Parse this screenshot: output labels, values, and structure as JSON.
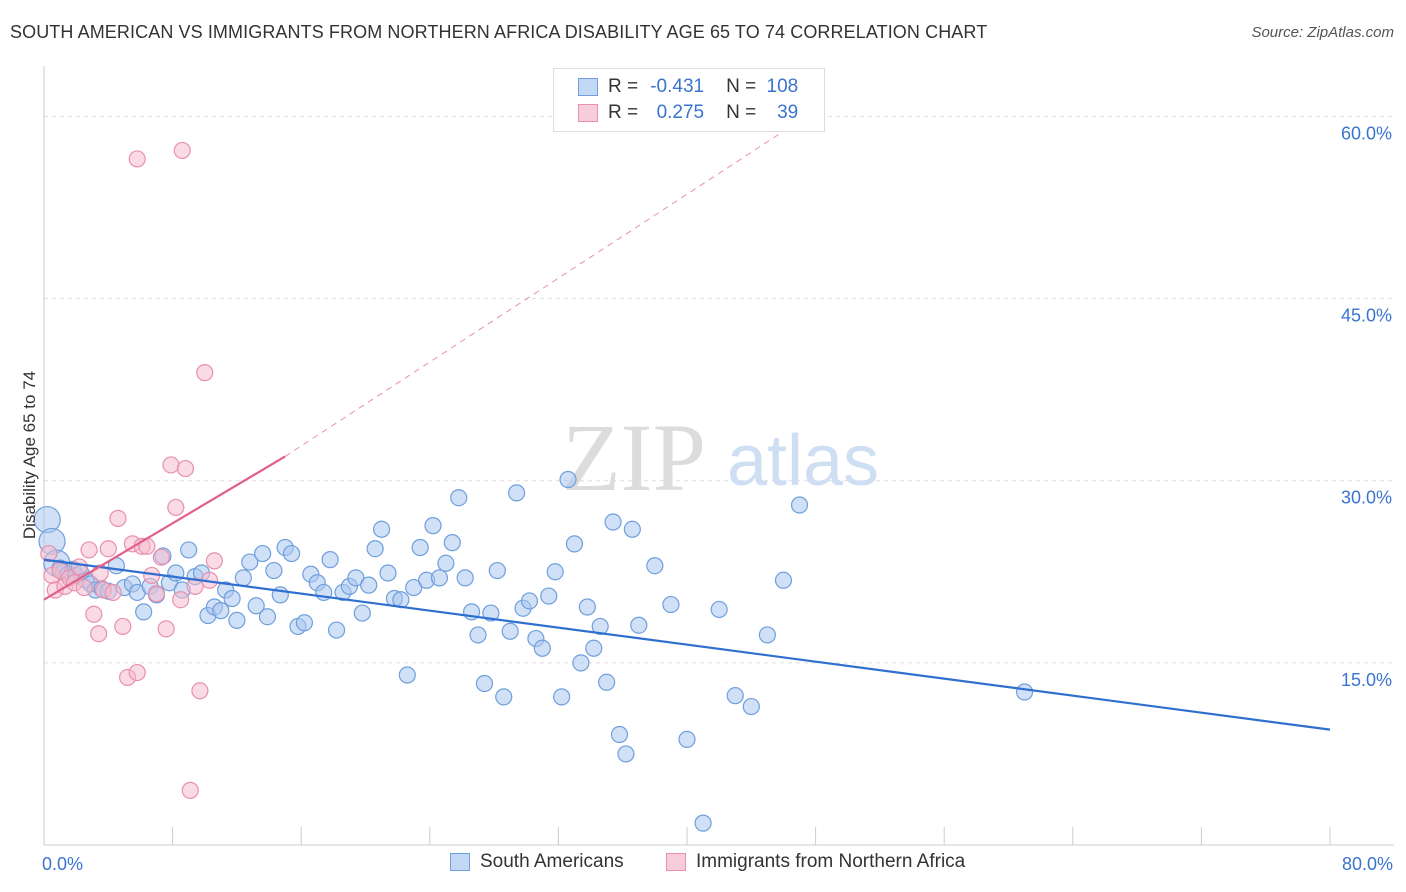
{
  "title": "SOUTH AMERICAN VS IMMIGRANTS FROM NORTHERN AFRICA DISABILITY AGE 65 TO 74 CORRELATION CHART",
  "source": "Source: ZipAtlas.com",
  "watermark": {
    "zip": "ZIP",
    "atlas": "atlas"
  },
  "legend": {
    "rows": [
      {
        "r_label": "R =",
        "r_value": "-0.431",
        "n_label": "N =",
        "n_value": "108"
      },
      {
        "r_label": "R =",
        "r_value": "0.275",
        "n_label": "N =",
        "n_value": "39"
      }
    ]
  },
  "colors": {
    "blue_fill": "#a9c6ee",
    "blue_stroke": "#6f9fdc",
    "blue_line": "#2f6fd0",
    "pink_fill": "#f5bccd",
    "pink_stroke": "#e890ad",
    "pink_line": "#e0608a",
    "axis_text": "#3a74d0",
    "grid": "#dddddd"
  },
  "chart_data": {
    "type": "scatter",
    "title": "SOUTH AMERICAN VS IMMIGRANTS FROM NORTHERN AFRICA DISABILITY AGE 65 TO 74 CORRELATION CHART",
    "xlabel": "",
    "ylabel": "Disability Age 65 to 74",
    "xlim": [
      0,
      80
    ],
    "ylim": [
      0,
      63
    ],
    "x_tick_labels": [
      {
        "value": 0,
        "label": "0.0%"
      },
      {
        "value": 80,
        "label": "80.0%"
      }
    ],
    "y_tick_labels": [
      {
        "value": 15,
        "label": "15.0%"
      },
      {
        "value": 30,
        "label": "30.0%"
      },
      {
        "value": 45,
        "label": "45.0%"
      },
      {
        "value": 60,
        "label": "60.0%"
      }
    ],
    "grid": true,
    "legend_position": "bottom",
    "series": [
      {
        "name": "South Americans",
        "r": -0.431,
        "n": 108,
        "trend": {
          "x0": 0,
          "y0": 23.5,
          "x1": 80,
          "y1": 9.5
        },
        "points": [
          [
            0.2,
            26.8
          ],
          [
            0.5,
            25.0
          ],
          [
            0.8,
            23.2
          ],
          [
            1.0,
            22.8
          ],
          [
            1.2,
            22.5
          ],
          [
            1.5,
            22.3
          ],
          [
            1.8,
            22.7
          ],
          [
            2.0,
            22.2
          ],
          [
            2.3,
            22.4
          ],
          [
            2.6,
            21.8
          ],
          [
            2.9,
            21.5
          ],
          [
            3.2,
            21.0
          ],
          [
            3.6,
            21.1
          ],
          [
            4.0,
            20.9
          ],
          [
            4.5,
            23.0
          ],
          [
            5.0,
            21.2
          ],
          [
            5.5,
            21.5
          ],
          [
            5.8,
            20.8
          ],
          [
            6.2,
            19.2
          ],
          [
            6.6,
            21.3
          ],
          [
            7.0,
            20.6
          ],
          [
            7.4,
            23.8
          ],
          [
            7.8,
            21.6
          ],
          [
            8.2,
            22.4
          ],
          [
            8.6,
            21.0
          ],
          [
            9.0,
            24.3
          ],
          [
            9.4,
            22.1
          ],
          [
            9.8,
            22.4
          ],
          [
            10.2,
            18.9
          ],
          [
            10.6,
            19.6
          ],
          [
            11.0,
            19.3
          ],
          [
            11.3,
            21.0
          ],
          [
            11.7,
            20.3
          ],
          [
            12.0,
            18.5
          ],
          [
            12.4,
            22.0
          ],
          [
            12.8,
            23.3
          ],
          [
            13.2,
            19.7
          ],
          [
            13.6,
            24.0
          ],
          [
            13.9,
            18.8
          ],
          [
            14.3,
            22.6
          ],
          [
            14.7,
            20.6
          ],
          [
            15.0,
            24.5
          ],
          [
            15.4,
            24.0
          ],
          [
            15.8,
            18.0
          ],
          [
            16.2,
            18.3
          ],
          [
            16.6,
            22.3
          ],
          [
            17.0,
            21.6
          ],
          [
            17.4,
            20.8
          ],
          [
            17.8,
            23.5
          ],
          [
            18.2,
            17.7
          ],
          [
            18.6,
            20.8
          ],
          [
            19.0,
            21.3
          ],
          [
            19.4,
            22.0
          ],
          [
            19.8,
            19.1
          ],
          [
            20.2,
            21.4
          ],
          [
            20.6,
            24.4
          ],
          [
            21.0,
            26.0
          ],
          [
            21.4,
            22.4
          ],
          [
            21.8,
            20.3
          ],
          [
            22.2,
            20.2
          ],
          [
            22.6,
            14.0
          ],
          [
            23.0,
            21.2
          ],
          [
            23.4,
            24.5
          ],
          [
            23.8,
            21.8
          ],
          [
            24.2,
            26.3
          ],
          [
            24.6,
            22.0
          ],
          [
            25.0,
            23.2
          ],
          [
            25.4,
            24.9
          ],
          [
            25.8,
            28.6
          ],
          [
            26.2,
            22.0
          ],
          [
            26.6,
            19.2
          ],
          [
            27.0,
            17.3
          ],
          [
            27.4,
            13.3
          ],
          [
            27.8,
            19.1
          ],
          [
            28.2,
            22.6
          ],
          [
            28.6,
            12.2
          ],
          [
            29.0,
            17.6
          ],
          [
            29.4,
            29.0
          ],
          [
            29.8,
            19.5
          ],
          [
            30.2,
            20.1
          ],
          [
            30.6,
            17.0
          ],
          [
            31.0,
            16.2
          ],
          [
            31.4,
            20.5
          ],
          [
            31.8,
            22.5
          ],
          [
            32.2,
            12.2
          ],
          [
            32.6,
            30.1
          ],
          [
            33.0,
            24.8
          ],
          [
            33.4,
            15.0
          ],
          [
            33.8,
            19.6
          ],
          [
            34.2,
            16.2
          ],
          [
            34.6,
            18.0
          ],
          [
            35.0,
            13.4
          ],
          [
            35.4,
            26.6
          ],
          [
            35.8,
            9.1
          ],
          [
            36.2,
            7.5
          ],
          [
            36.6,
            26.0
          ],
          [
            37.0,
            18.1
          ],
          [
            38.0,
            23.0
          ],
          [
            39.0,
            19.8
          ],
          [
            40.0,
            8.7
          ],
          [
            41.0,
            1.8
          ],
          [
            42.0,
            19.4
          ],
          [
            43.0,
            12.3
          ],
          [
            44.0,
            11.4
          ],
          [
            45.0,
            17.3
          ],
          [
            46.0,
            21.8
          ],
          [
            47.0,
            28.0
          ],
          [
            61.0,
            12.6
          ]
        ]
      },
      {
        "name": "Immigrants from Northern Africa",
        "r": 0.275,
        "n": 39,
        "trend": {
          "x0": 0,
          "y0": 20.2,
          "x1": 15,
          "y1": 32.0,
          "x_ext": 48,
          "y_ext": 60.5
        },
        "points": [
          [
            0.3,
            24.0
          ],
          [
            0.5,
            22.2
          ],
          [
            0.7,
            21.0
          ],
          [
            1.0,
            22.6
          ],
          [
            1.3,
            21.3
          ],
          [
            1.6,
            22.0
          ],
          [
            1.9,
            21.6
          ],
          [
            2.2,
            22.9
          ],
          [
            2.5,
            21.2
          ],
          [
            2.8,
            24.3
          ],
          [
            3.1,
            19.0
          ],
          [
            3.4,
            17.4
          ],
          [
            3.7,
            21.0
          ],
          [
            4.0,
            24.4
          ],
          [
            4.3,
            20.8
          ],
          [
            4.6,
            26.9
          ],
          [
            4.9,
            18.0
          ],
          [
            5.2,
            13.8
          ],
          [
            5.5,
            24.8
          ],
          [
            5.8,
            14.2
          ],
          [
            6.1,
            24.6
          ],
          [
            6.4,
            24.6
          ],
          [
            6.7,
            22.2
          ],
          [
            7.0,
            20.7
          ],
          [
            7.3,
            23.7
          ],
          [
            7.6,
            17.8
          ],
          [
            7.9,
            31.3
          ],
          [
            8.2,
            27.8
          ],
          [
            8.5,
            20.2
          ],
          [
            8.8,
            31.0
          ],
          [
            9.1,
            4.5
          ],
          [
            9.4,
            21.3
          ],
          [
            9.7,
            12.7
          ],
          [
            10.0,
            38.9
          ],
          [
            10.3,
            21.8
          ],
          [
            10.6,
            23.4
          ],
          [
            5.8,
            56.5
          ],
          [
            8.6,
            57.2
          ],
          [
            3.5,
            22.4
          ]
        ]
      }
    ]
  }
}
